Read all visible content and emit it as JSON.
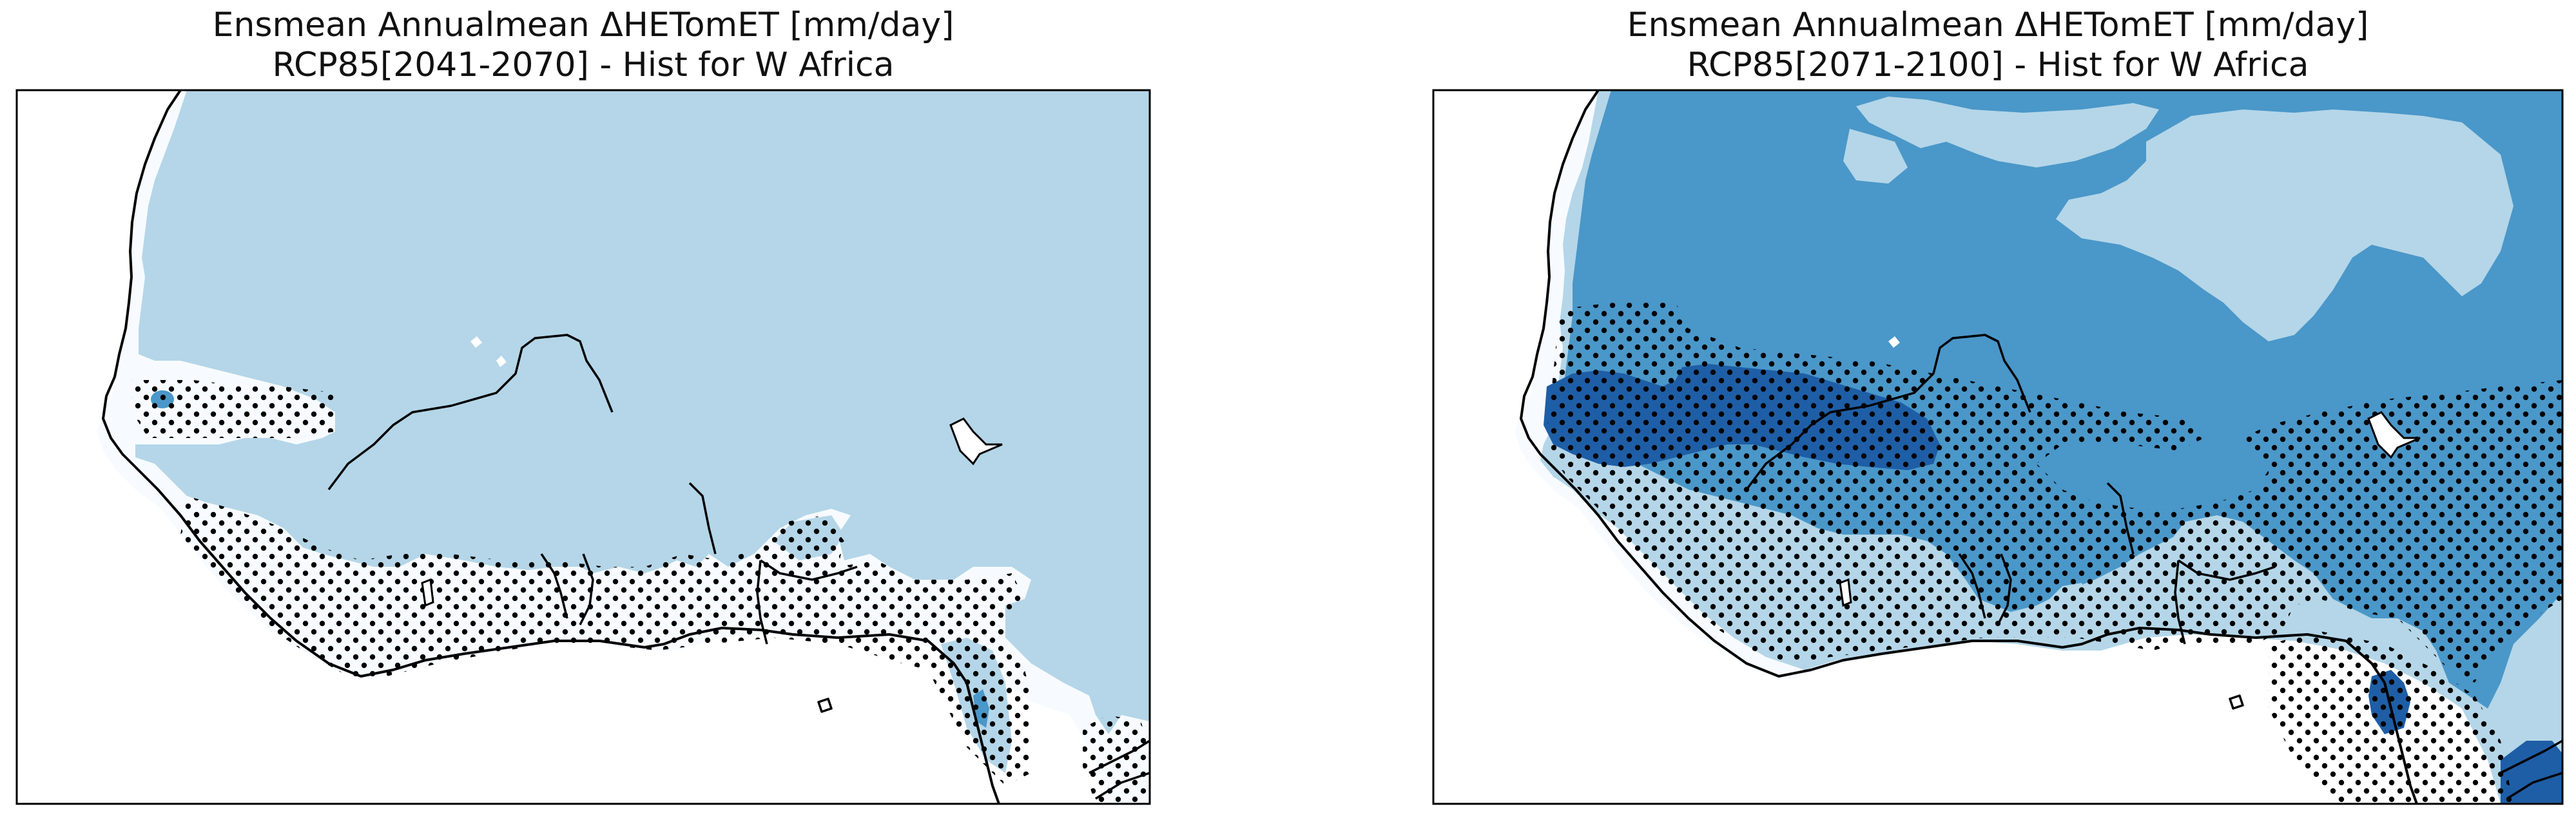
{
  "panels": [
    {
      "title_line1": "Ensmean  Annualmean ΔHETomET [mm/day]",
      "title_line2": "RCP85[2041-2070] - Hist for W Africa"
    },
    {
      "title_line1": "Ensmean  Annualmean ΔHETomET [mm/day]",
      "title_line2": "RCP85[2071-2100] - Hist for W Africa"
    }
  ],
  "colors": {
    "level_0": "#f7fbff",
    "level_1": "#b4d6e8",
    "level_2": "#4a97c9",
    "level_3": "#1e5ea6",
    "coastline": "#000000",
    "stipple": "#000000",
    "frame": "#000000"
  }
}
